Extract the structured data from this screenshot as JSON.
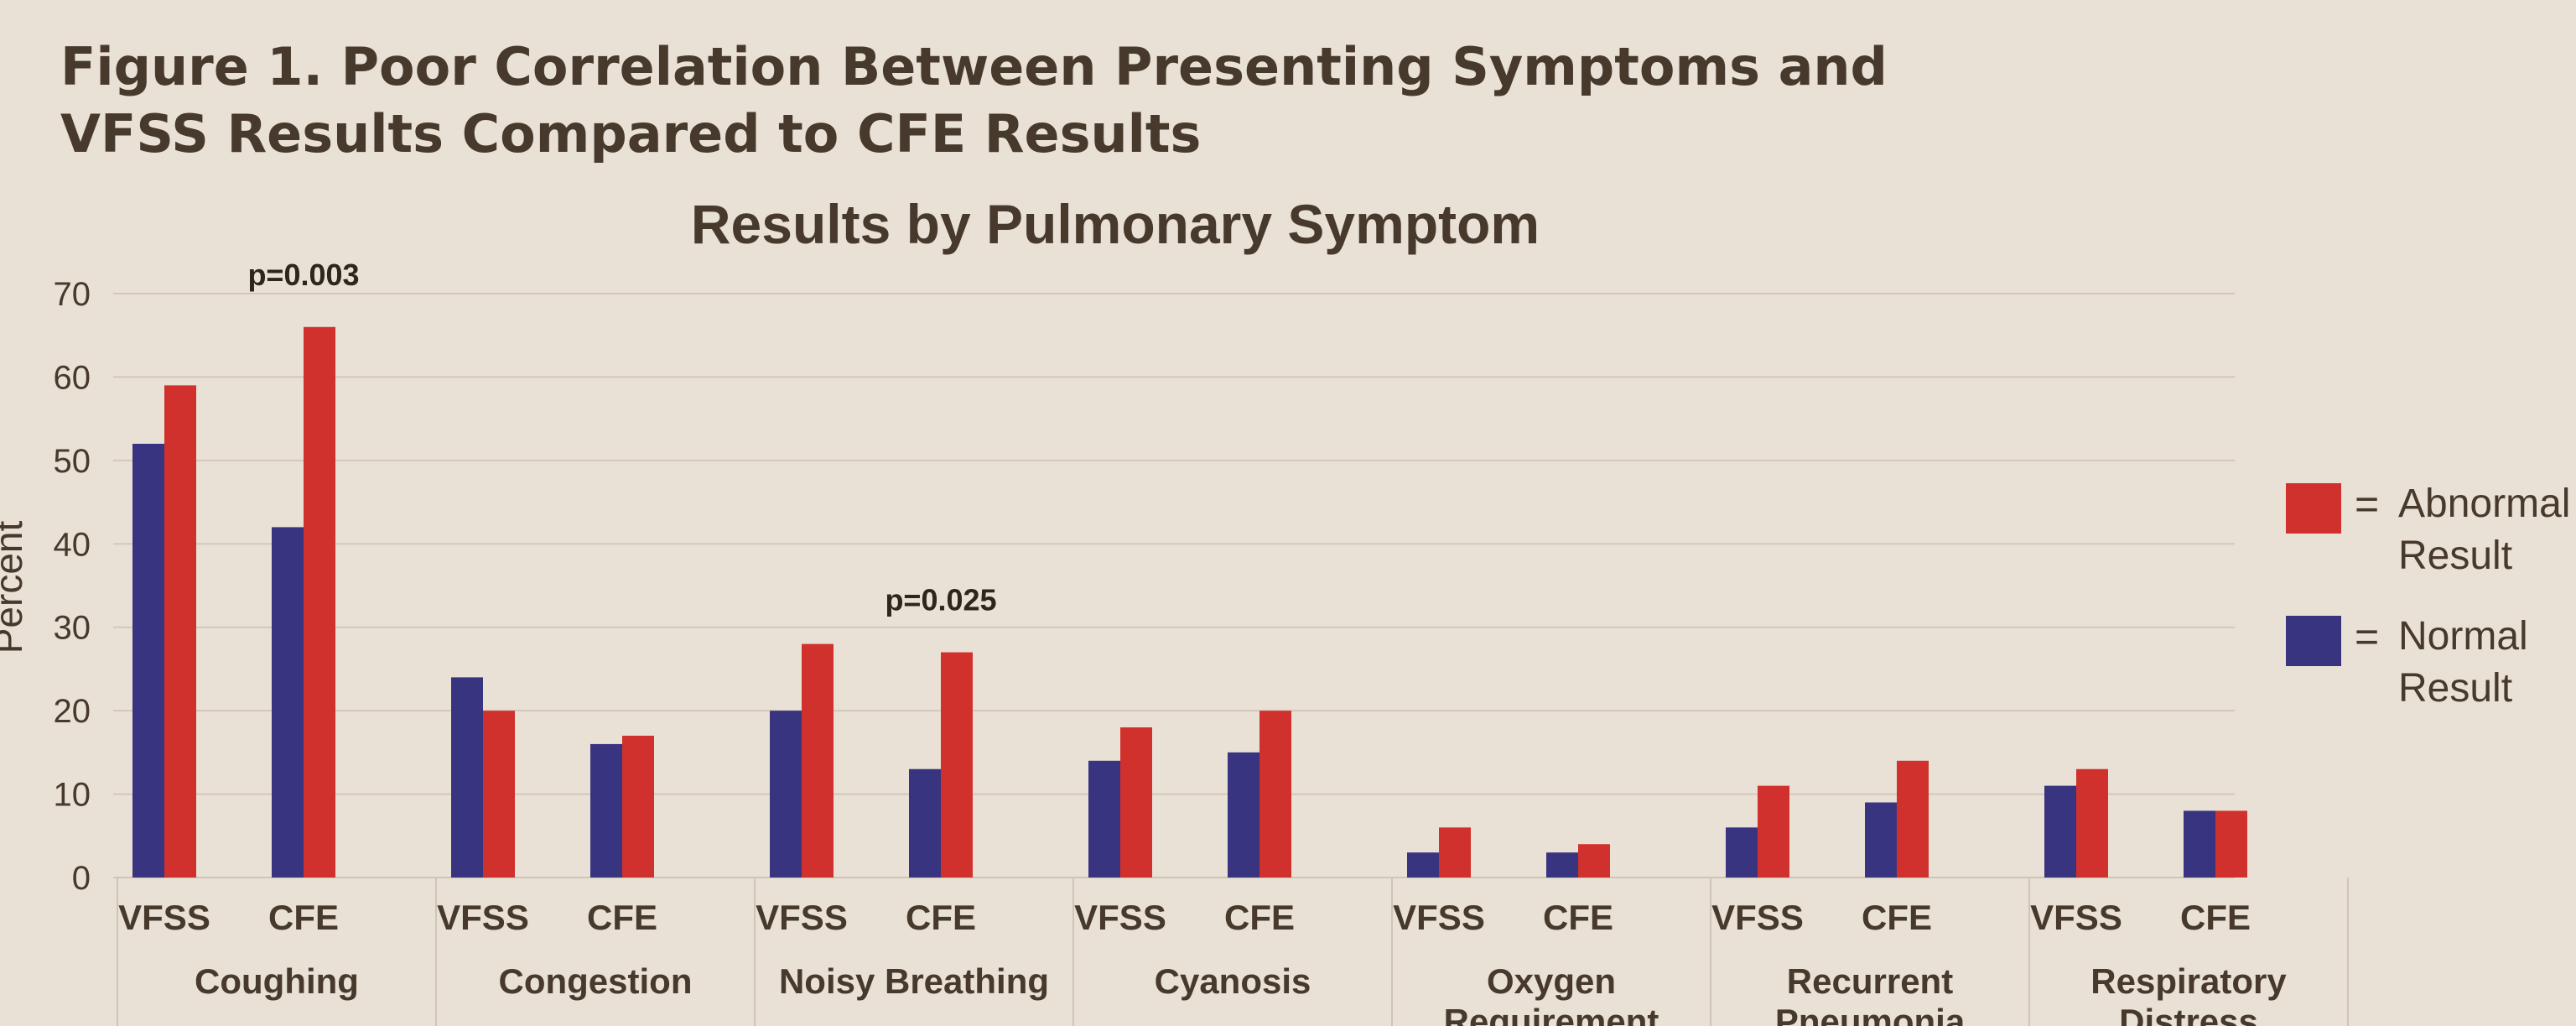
{
  "figure_title": "Figure 1. Poor Correlation Between Presenting Symptoms and VFSS Results Compared to CFE Results",
  "chart_data": {
    "type": "bar",
    "title": "Results by Pulmonary Symptom",
    "ylabel": "Percent",
    "xlabel": "",
    "ylim": [
      0,
      70
    ],
    "yticks": [
      0,
      10,
      20,
      30,
      40,
      50,
      60,
      70
    ],
    "grid": true,
    "legend_position": "right",
    "legend": [
      {
        "key": "abnormal",
        "symbol": "=",
        "line1": "Abnormal",
        "line2": "Result"
      },
      {
        "key": "normal",
        "symbol": "=",
        "line1": "Normal",
        "line2": "Result"
      }
    ],
    "colors": {
      "normal": "#39347f",
      "abnormal": "#d0312d"
    },
    "symptom_groups": [
      {
        "name": "Coughing",
        "name_lines": [
          "Coughing"
        ],
        "tests": [
          {
            "label": "VFSS",
            "normal": 52,
            "abnormal": 59
          },
          {
            "label": "CFE",
            "normal": 42,
            "abnormal": 66,
            "p_value": "p=0.003"
          }
        ]
      },
      {
        "name": "Congestion",
        "name_lines": [
          "Congestion"
        ],
        "tests": [
          {
            "label": "VFSS",
            "normal": 24,
            "abnormal": 20
          },
          {
            "label": "CFE",
            "normal": 16,
            "abnormal": 17
          }
        ]
      },
      {
        "name": "Noisy Breathing",
        "name_lines": [
          "Noisy Breathing"
        ],
        "tests": [
          {
            "label": "VFSS",
            "normal": 20,
            "abnormal": 28
          },
          {
            "label": "CFE",
            "normal": 13,
            "abnormal": 27,
            "p_value": "p=0.025"
          }
        ]
      },
      {
        "name": "Cyanosis",
        "name_lines": [
          "Cyanosis"
        ],
        "tests": [
          {
            "label": "VFSS",
            "normal": 14,
            "abnormal": 18
          },
          {
            "label": "CFE",
            "normal": 15,
            "abnormal": 20
          }
        ]
      },
      {
        "name": "Oxygen Requirement",
        "name_lines": [
          "Oxygen",
          "Requirement"
        ],
        "tests": [
          {
            "label": "VFSS",
            "normal": 3,
            "abnormal": 6
          },
          {
            "label": "CFE",
            "normal": 3,
            "abnormal": 4
          }
        ]
      },
      {
        "name": "Recurrent Pneumonia",
        "name_lines": [
          "Recurrent",
          "Pneumonia"
        ],
        "tests": [
          {
            "label": "VFSS",
            "normal": 6,
            "abnormal": 11
          },
          {
            "label": "CFE",
            "normal": 9,
            "abnormal": 14
          }
        ]
      },
      {
        "name": "Respiratory Distress",
        "name_lines": [
          "Respiratory",
          "Distress"
        ],
        "tests": [
          {
            "label": "VFSS",
            "normal": 11,
            "abnormal": 13
          },
          {
            "label": "CFE",
            "normal": 8,
            "abnormal": 8
          }
        ]
      }
    ]
  }
}
